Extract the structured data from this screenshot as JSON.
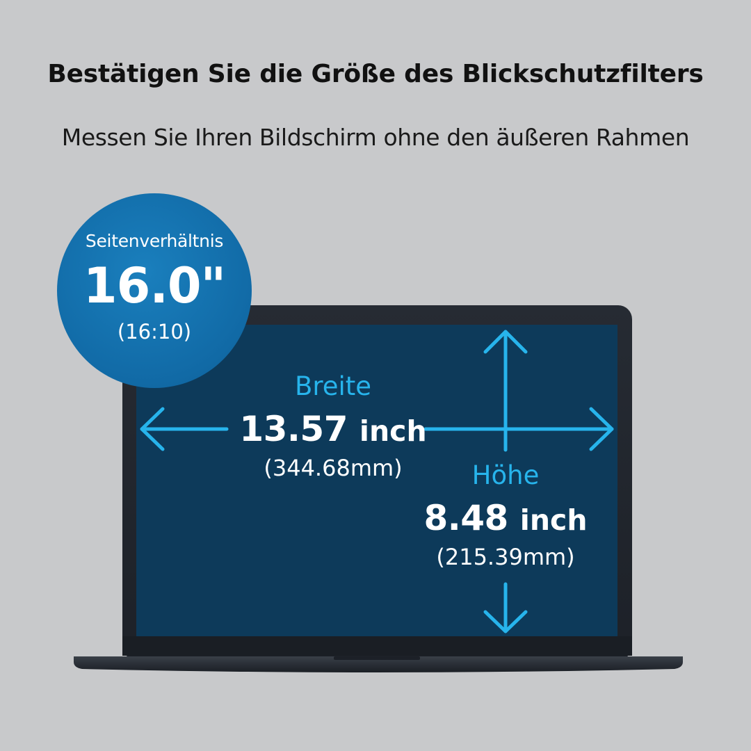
{
  "headline": "Bestätigen Sie die Größe des Blickschutzfilters",
  "subheadline": "Messen Sie Ihren Bildschirm ohne den äußeren Rahmen",
  "badge": {
    "caption": "Seitenverhältnis",
    "size": "16.0\"",
    "ratio": "(16:10)"
  },
  "width": {
    "label": "Breite",
    "value": "13.57",
    "unit": "inch",
    "metric": "(344.68mm)"
  },
  "height": {
    "label": "Höhe",
    "value": "8.48",
    "unit": "inch",
    "metric": "(215.39mm)"
  },
  "colors": {
    "background": "#c8c9cb",
    "screen": "#0d3a5a",
    "accent": "#27b4ec",
    "badge": "#116aa6",
    "laptop_body": "#2a3038"
  },
  "icons": [
    "double-arrow-horizontal-icon",
    "double-arrow-vertical-icon"
  ]
}
